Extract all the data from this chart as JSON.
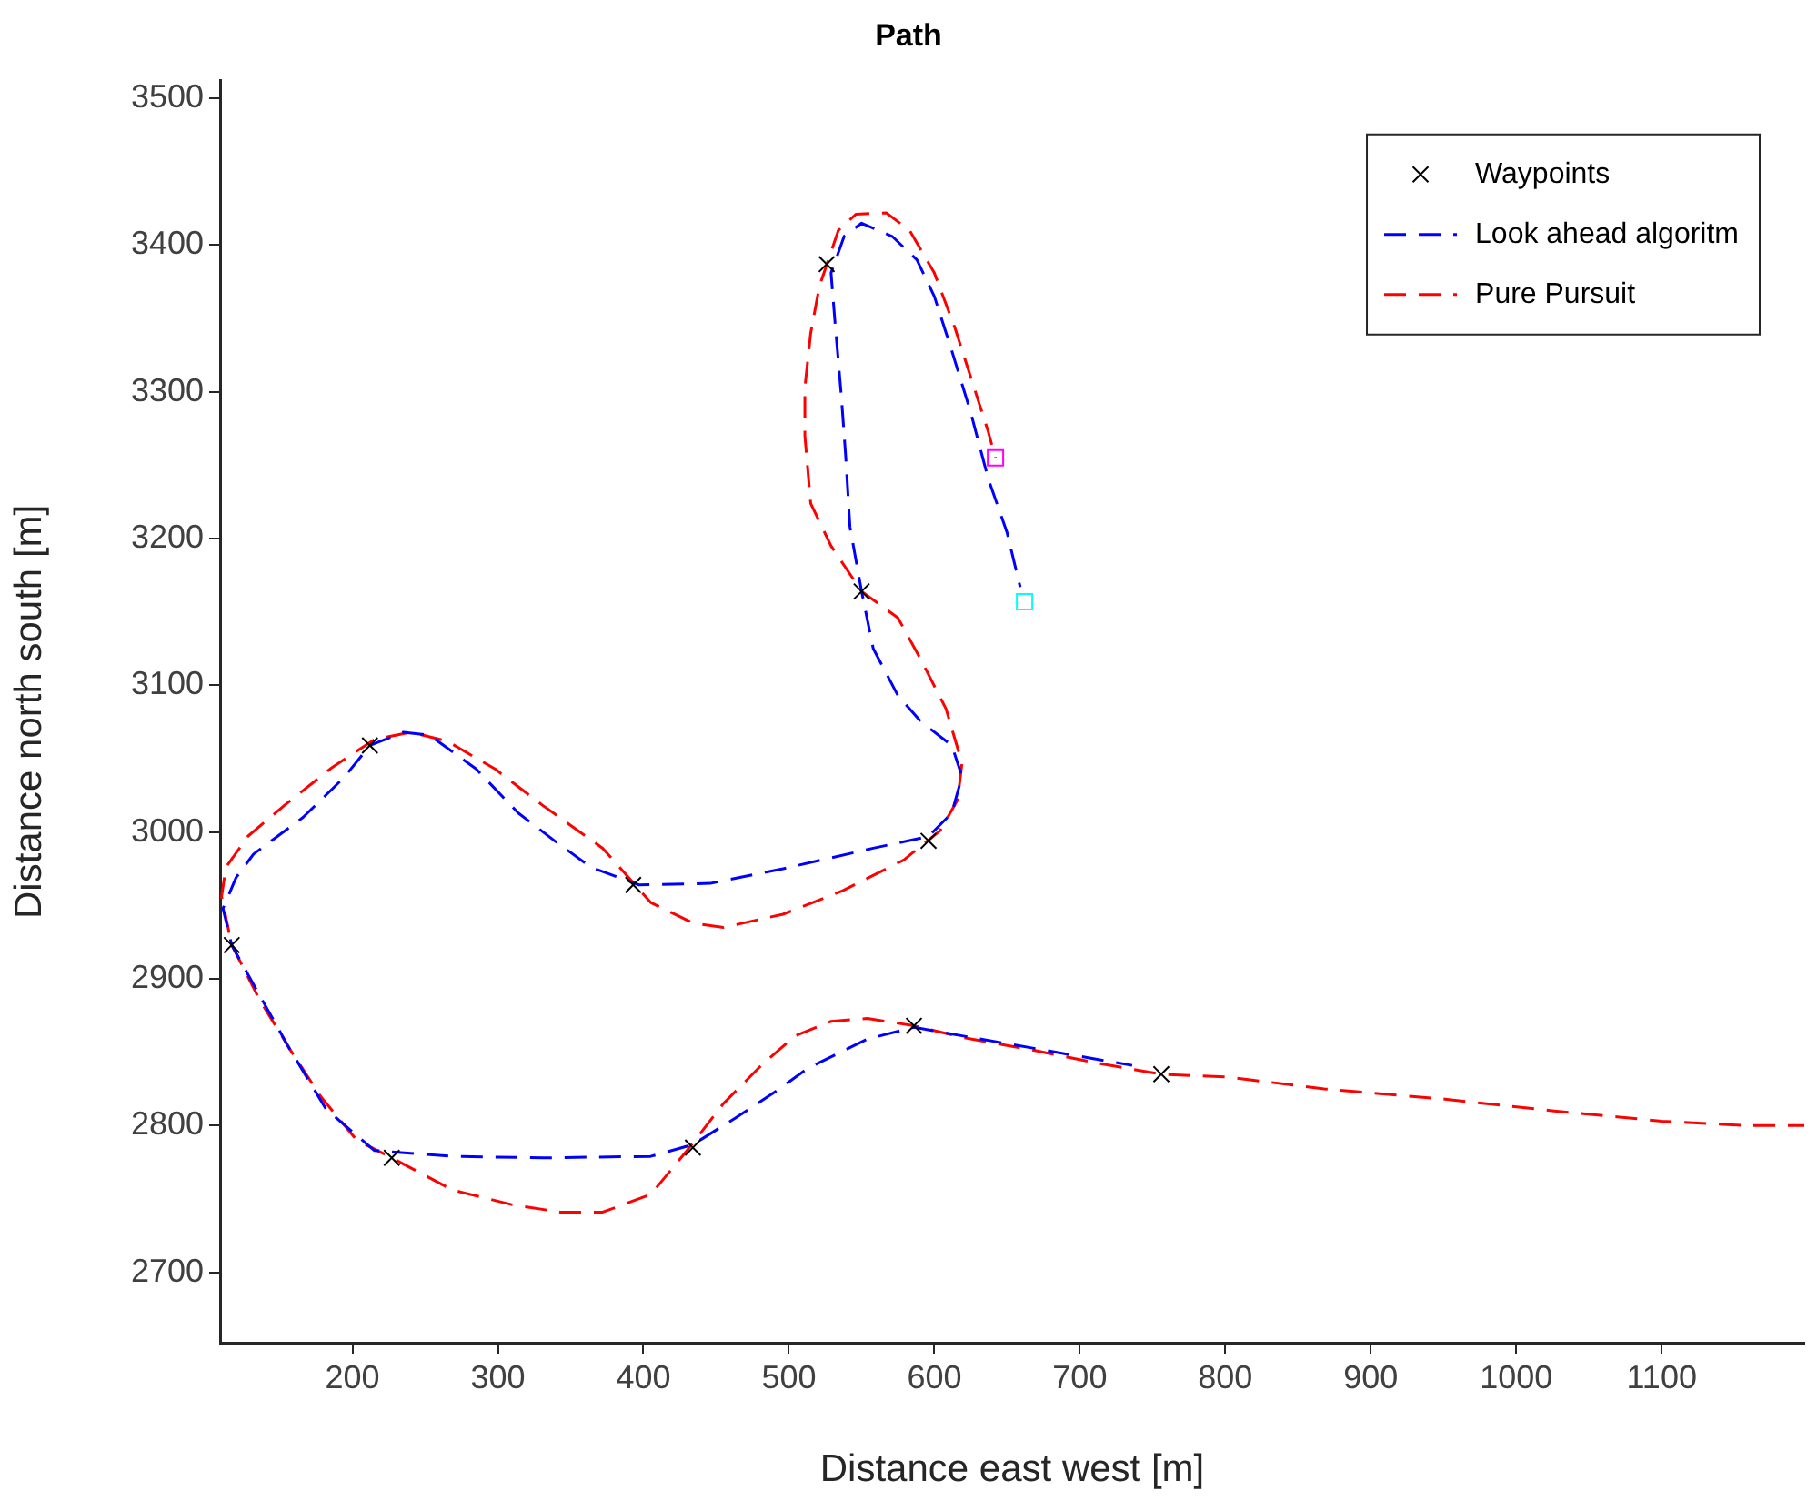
{
  "chart_data": {
    "type": "line",
    "title": "Path",
    "xlabel": "Distance east west [m]",
    "ylabel": "Distance north south [m]",
    "xlim": [
      109,
      1198
    ],
    "ylim": [
      2652,
      3512
    ],
    "xticks": [
      200,
      300,
      400,
      500,
      600,
      700,
      800,
      900,
      1000,
      1100
    ],
    "yticks": [
      2700,
      2800,
      2900,
      3000,
      3100,
      3200,
      3300,
      3400,
      3500
    ],
    "grid": false,
    "legend": "top right",
    "series": [
      {
        "name": "Waypoints",
        "type": "scatter",
        "marker": "cross",
        "color": "#000000",
        "x": [
          756,
          586,
          434,
          227,
          117,
          212,
          393,
          596,
          550,
          526
        ],
        "values": [
          2835,
          2868,
          2785,
          2778,
          2923,
          3059,
          2964,
          2994,
          3164,
          3387
        ]
      },
      {
        "name": "Look ahead algoritm",
        "type": "line",
        "marker": "none",
        "line_style": "dashed",
        "color": "#0000ff",
        "x": [
          736,
          620,
          586,
          554,
          513,
          492,
          463,
          434,
          405,
          331,
          269,
          215,
          182,
          157,
          136,
          117,
          111,
          120,
          132,
          166,
          194,
          212,
          235,
          253,
          285,
          314,
          339,
          364,
          397,
          446,
          496,
          558,
          596,
          612,
          619,
          612,
          591,
          575,
          558,
          550,
          542,
          539,
          536,
          532,
          529,
          538,
          550,
          571,
          588,
          600,
          612,
          625,
          637,
          650,
          659
        ],
        "values": [
          2841,
          2861,
          2867,
          2859,
          2839,
          2824,
          2805,
          2787,
          2779,
          2778,
          2779,
          2783,
          2811,
          2852,
          2889,
          2923,
          2948,
          2969,
          2985,
          3010,
          3037,
          3059,
          3068,
          3066,
          3043,
          3013,
          2994,
          2976,
          2964,
          2965,
          2975,
          2989,
          2997,
          3013,
          3038,
          3059,
          3075,
          3093,
          3125,
          3164,
          3208,
          3257,
          3298,
          3344,
          3381,
          3406,
          3415,
          3406,
          3390,
          3365,
          3328,
          3286,
          3241,
          3204,
          3167
        ]
      },
      {
        "name": "Pure Pursuit",
        "type": "line",
        "marker": "none",
        "line_style": "dashed",
        "color": "#ff0000",
        "x": [
          1198,
          1158,
          1100,
          1026,
          951,
          868,
          802,
          756,
          715,
          670,
          620,
          586,
          554,
          529,
          504,
          480,
          455,
          430,
          405,
          372,
          343,
          310,
          269,
          227,
          203,
          178,
          157,
          136,
          117,
          110,
          113,
          128,
          153,
          186,
          215,
          240,
          265,
          298,
          331,
          372,
          405,
          434,
          455,
          496,
          537,
          579,
          604,
          616,
          619,
          608,
          591,
          575,
          550,
          529,
          515,
          511,
          511,
          515,
          521,
          534,
          546,
          567,
          583,
          600,
          614,
          626,
          637,
          642
        ],
        "values": [
          2800,
          2800,
          2803,
          2810,
          2818,
          2825,
          2833,
          2835,
          2842,
          2851,
          2860,
          2868,
          2873,
          2871,
          2861,
          2840,
          2815,
          2783,
          2753,
          2741,
          2741,
          2746,
          2756,
          2778,
          2790,
          2820,
          2852,
          2886,
          2923,
          2956,
          2976,
          2997,
          3018,
          3044,
          3063,
          3068,
          3062,
          3043,
          3018,
          2989,
          2952,
          2938,
          2935,
          2944,
          2960,
          2981,
          3001,
          3022,
          3047,
          3084,
          3117,
          3146,
          3164,
          3195,
          3224,
          3270,
          3303,
          3340,
          3372,
          3410,
          3421,
          3422,
          3410,
          3381,
          3344,
          3307,
          3273,
          3255
        ]
      },
      {
        "type": "scatter",
        "marker": "square",
        "color": "#ff00ff",
        "x": [
          642
        ],
        "values": [
          3255
        ]
      },
      {
        "type": "scatter",
        "marker": "square",
        "color": "#00ffff",
        "x": [
          662
        ],
        "values": [
          3157
        ]
      }
    ]
  }
}
